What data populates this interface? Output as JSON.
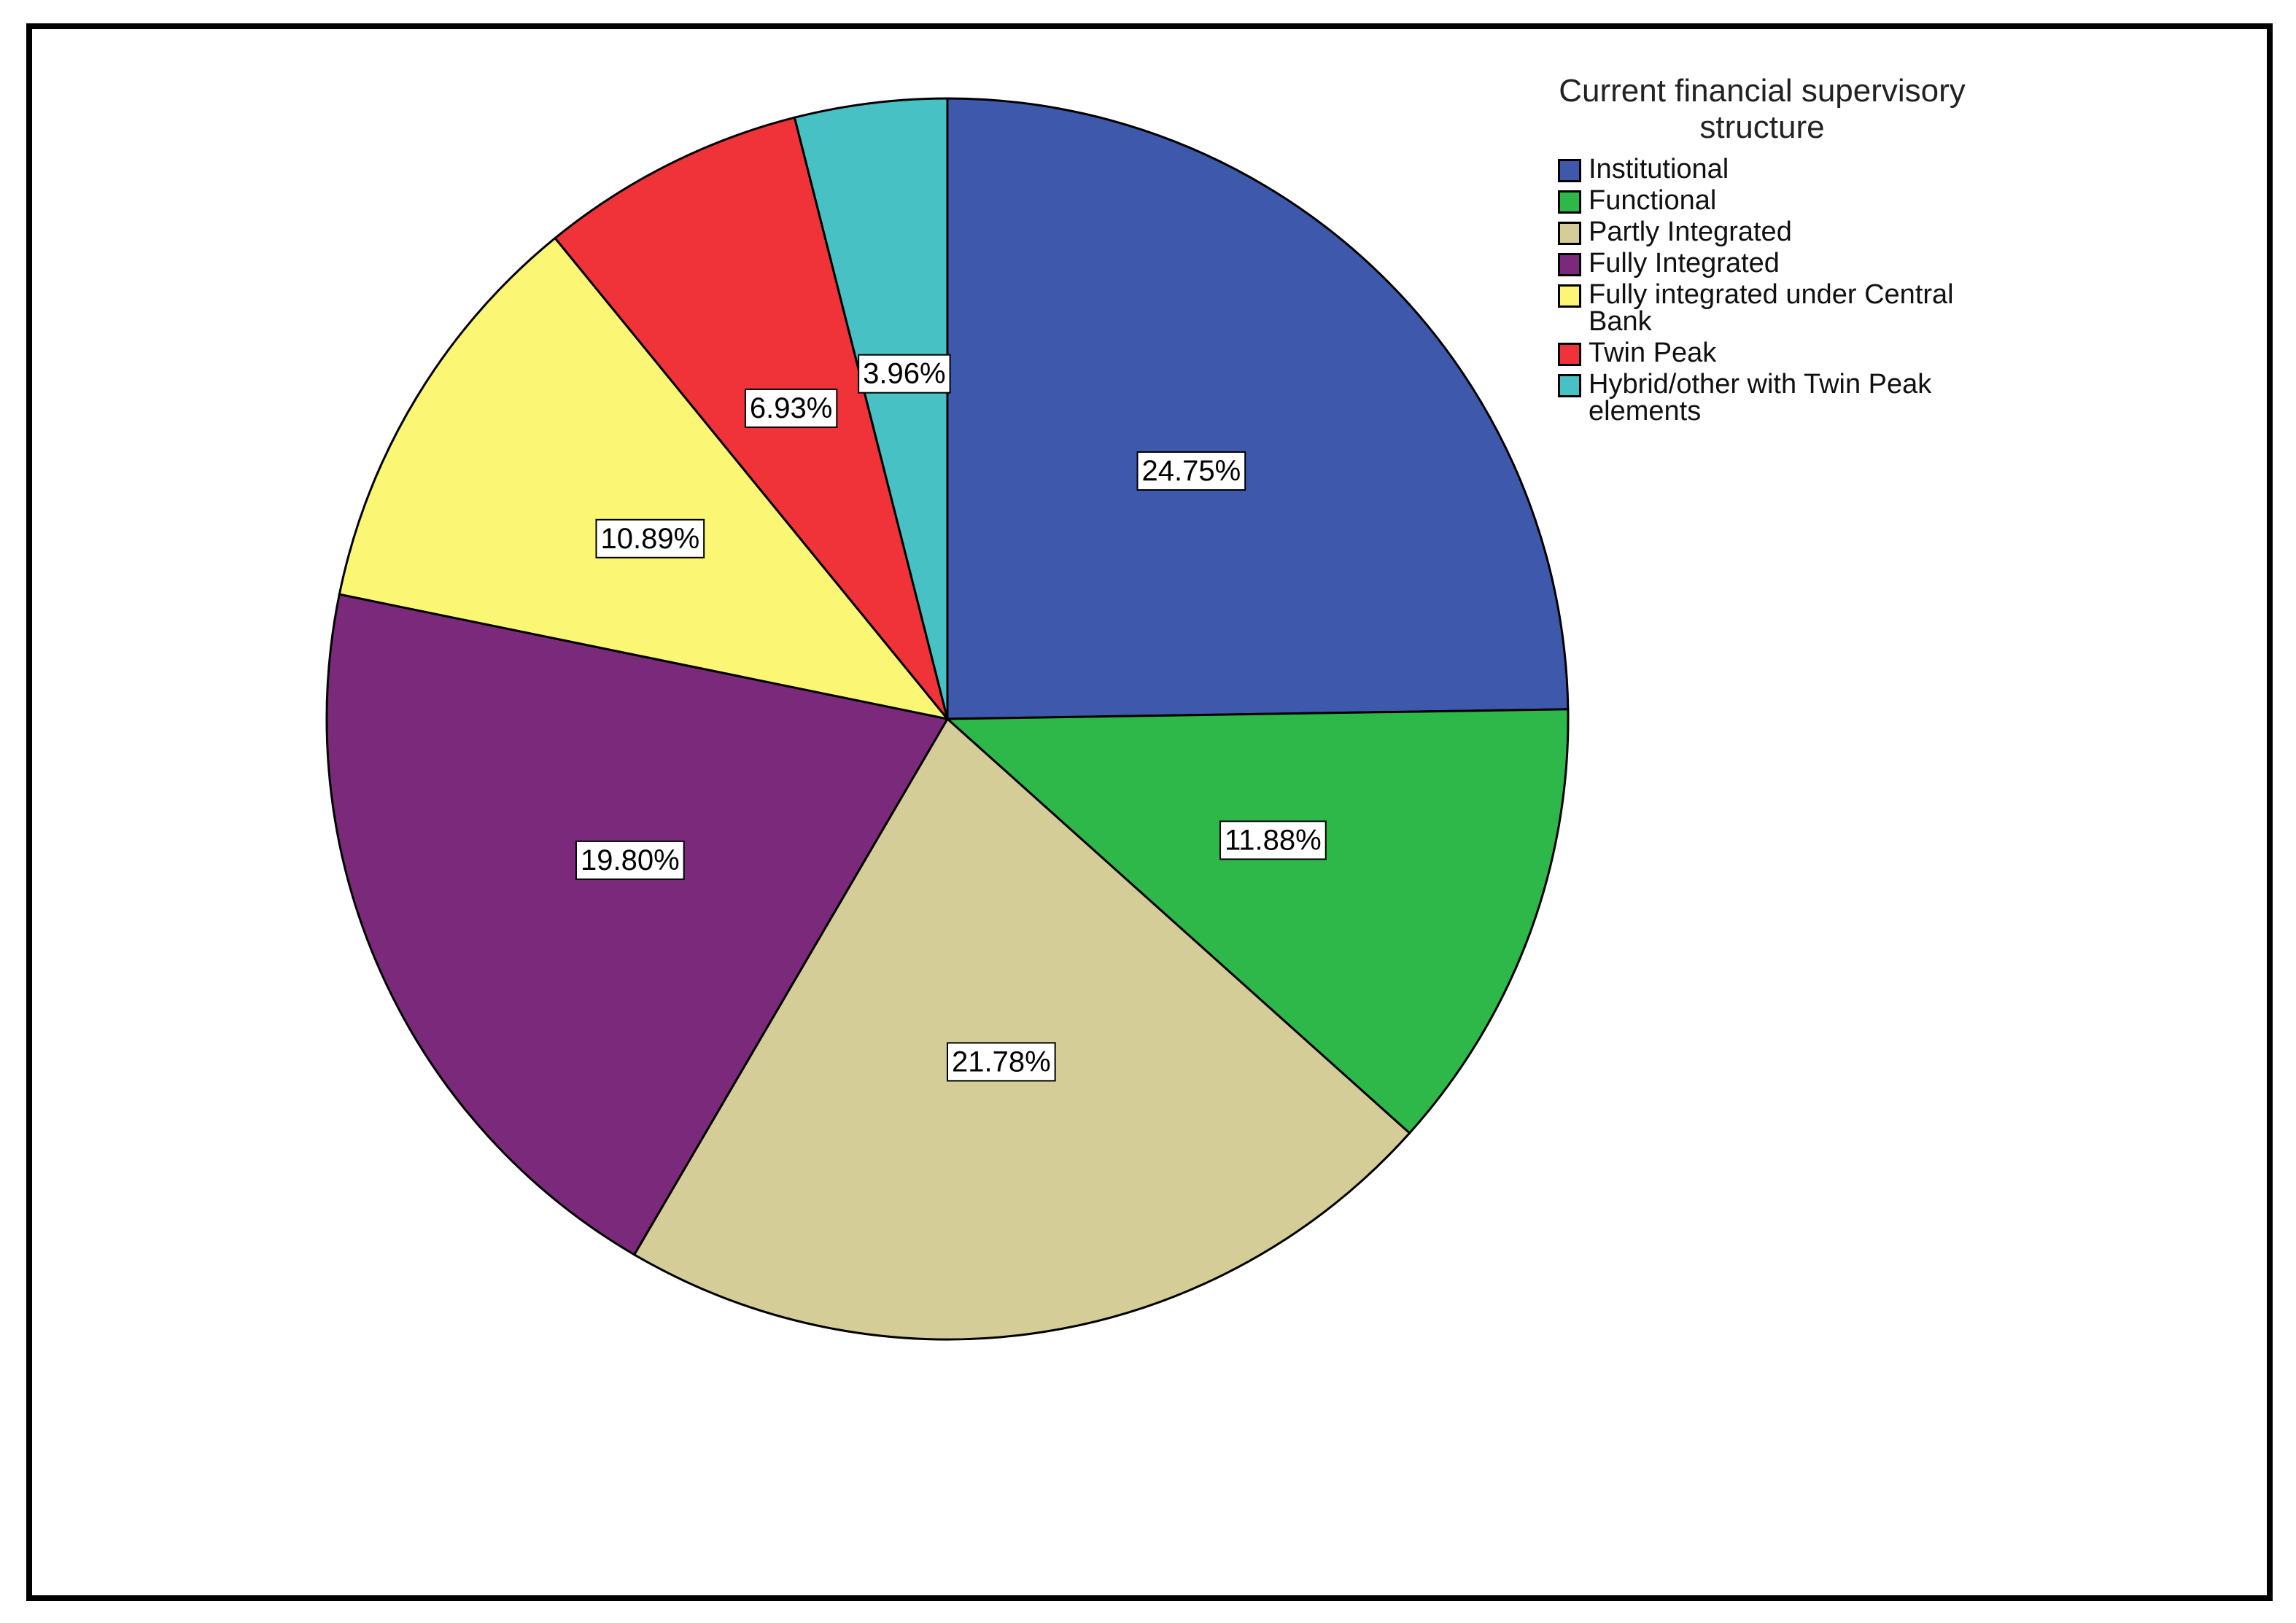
{
  "chart_data": {
    "type": "pie",
    "legend_title": "Current financial supervisory structure",
    "categories": [
      "Institutional",
      "Functional",
      "Partly Integrated",
      "Fully Integrated",
      "Fully integrated under Central Bank",
      "Twin Peak",
      "Hybrid/other with Twin Peak elements"
    ],
    "values": [
      24.75,
      11.88,
      21.78,
      19.8,
      10.89,
      6.93,
      3.96
    ],
    "value_labels": [
      "24.75%",
      "11.88%",
      "21.78%",
      "19.80%",
      "10.89%",
      "6.93%",
      "3.96%"
    ],
    "colors": [
      "#3e58ac",
      "#2fb84a",
      "#d4cd98",
      "#7b2a7b",
      "#fbf774",
      "#ef3338",
      "#48c1c5"
    ]
  }
}
